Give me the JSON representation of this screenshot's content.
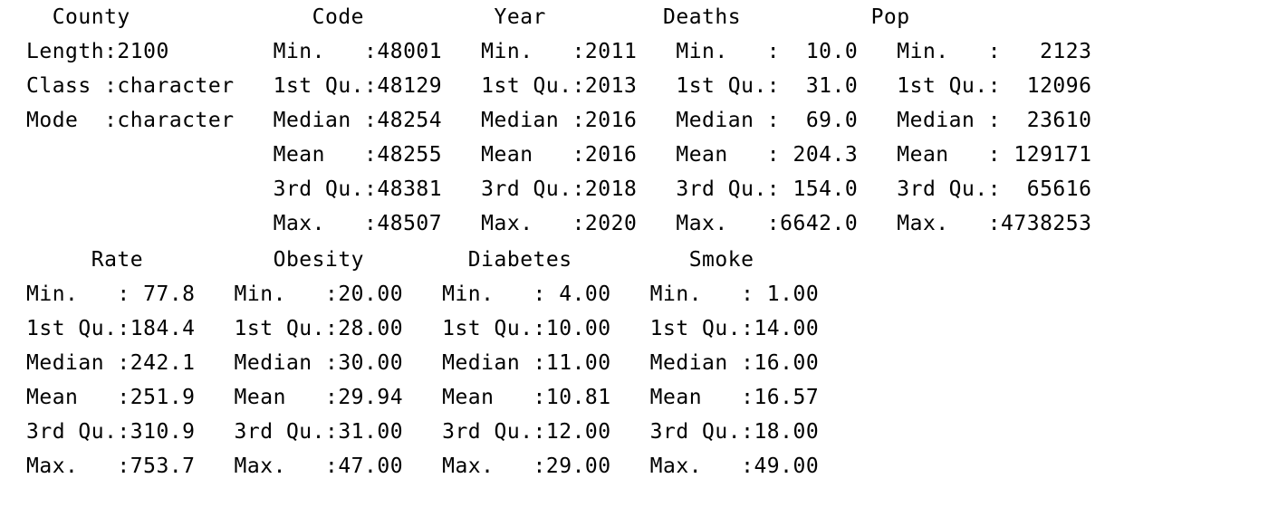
{
  "console": {
    "lines": [
      "  County              Code          Year         Deaths          Pop        ",
      "Length:2100        Min.   :48001   Min.   :2011   Min.   :  10.0   Min.   :   2123  ",
      "Class :character   1st Qu.:48129   1st Qu.:2013   1st Qu.:  31.0   1st Qu.:  12096  ",
      "Mode  :character   Median :48254   Median :2016   Median :  69.0   Median :  23610  ",
      "                   Mean   :48255   Mean   :2016   Mean   : 204.3   Mean   : 129171  ",
      "                   3rd Qu.:48381   3rd Qu.:2018   3rd Qu.: 154.0   3rd Qu.:  65616  ",
      "                   Max.   :48507   Max.   :2020   Max.   :6642.0   Max.   :4738253  ",
      "     Rate          Obesity        Diabetes         Smoke      ",
      "Min.   : 77.8   Min.   :20.00   Min.   : 4.00   Min.   : 1.00  ",
      "1st Qu.:184.4   1st Qu.:28.00   1st Qu.:10.00   1st Qu.:14.00  ",
      "Median :242.1   Median :30.00   Median :11.00   Median :16.00  ",
      "Mean   :251.9   Mean   :29.94   Mean   :10.81   Mean   :16.57  ",
      "3rd Qu.:310.9   3rd Qu.:31.00   3rd Qu.:12.00   3rd Qu.:18.00  ",
      "Max.   :753.7   Max.   :47.00   Max.   :29.00   Max.   :49.00  "
    ]
  }
}
